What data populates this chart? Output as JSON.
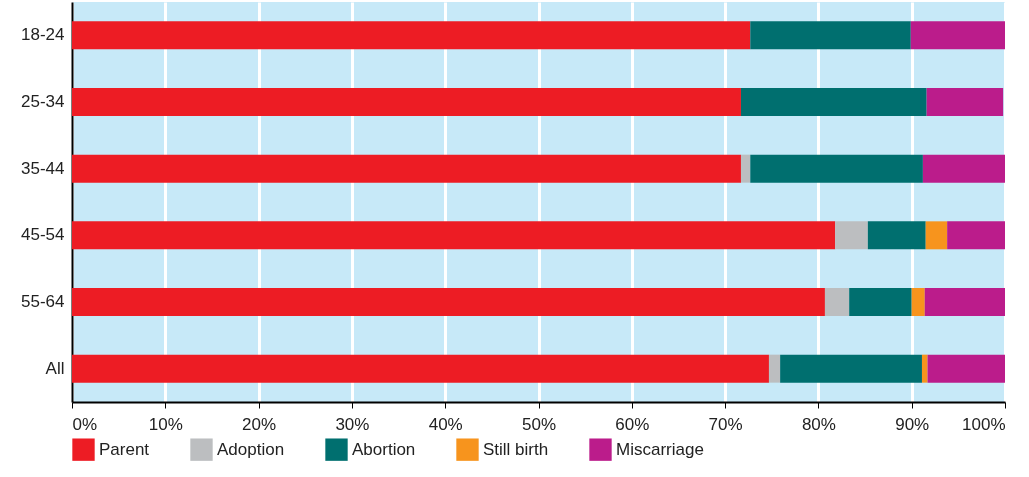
{
  "chart_data": {
    "type": "bar",
    "orientation": "horizontal",
    "stacked": true,
    "categories": [
      "18-24",
      "25-34",
      "35-44",
      "45-54",
      "55-64",
      "All"
    ],
    "series": [
      {
        "name": "Parent",
        "color": "#ed1c24",
        "values": [
          72.7,
          71.7,
          71.7,
          81.8,
          80.7,
          74.7
        ]
      },
      {
        "name": "Adoption",
        "color": "#bcbec0",
        "values": [
          null,
          null,
          1.0,
          3.5,
          2.6,
          1.2
        ]
      },
      {
        "name": "Abortion",
        "color": "#006f6f",
        "values": [
          17.2,
          19.9,
          18.5,
          6.2,
          6.7,
          15.2
        ]
      },
      {
        "name": "Still birth",
        "color": "#f7941d",
        "values": [
          null,
          null,
          null,
          2.3,
          1.4,
          0.6
        ]
      },
      {
        "name": "Miscarriage",
        "color": "#bb1c8b",
        "values": [
          10.1,
          8.2,
          8.8,
          6.2,
          8.6,
          8.3
        ]
      }
    ],
    "xlim": [
      0,
      100
    ],
    "xticks": [
      {
        "value": 0,
        "label": "0%"
      },
      {
        "value": 10,
        "label": "10%"
      },
      {
        "value": 20,
        "label": "20%"
      },
      {
        "value": 30,
        "label": "30%"
      },
      {
        "value": 40,
        "label": "40%"
      },
      {
        "value": 50,
        "label": "50%"
      },
      {
        "value": 60,
        "label": "60%"
      },
      {
        "value": 70,
        "label": "70%"
      },
      {
        "value": 80,
        "label": "80%"
      },
      {
        "value": 90,
        "label": "90%"
      },
      {
        "value": 100,
        "label": "100%"
      }
    ],
    "grid": "x",
    "legend": "bottom left"
  }
}
